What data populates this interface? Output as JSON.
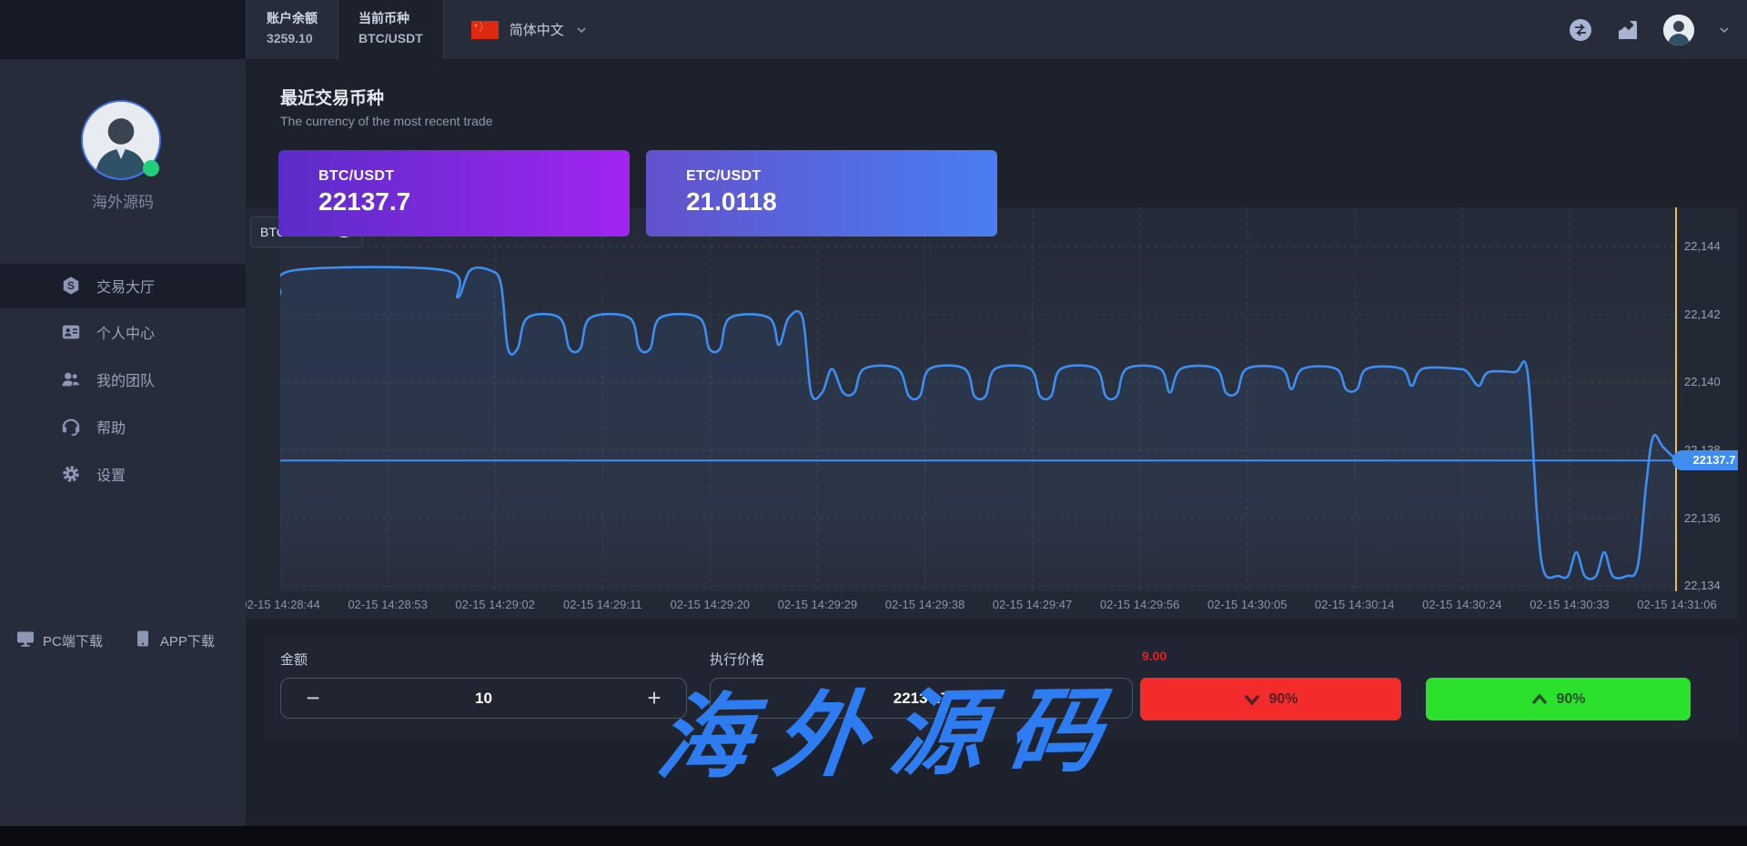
{
  "topbar": {
    "balance_label": "账户余额",
    "balance_value": "3259.10",
    "pair_label": "当前币种",
    "pair_value": "BTC/USDT",
    "language": "简体中文",
    "icons": [
      "transfer-icon",
      "market-chart-icon",
      "user-avatar",
      "chevron-down-icon"
    ]
  },
  "sidebar": {
    "username": "海外源码",
    "menu": [
      {
        "label": "交易大厅",
        "icon": "trade-hall-icon",
        "active": true
      },
      {
        "label": "个人中心",
        "icon": "profile-card-icon",
        "active": false
      },
      {
        "label": "我的团队",
        "icon": "team-icon",
        "active": false
      },
      {
        "label": "帮助",
        "icon": "support-icon",
        "active": false
      },
      {
        "label": "设置",
        "icon": "gear-icon",
        "active": false
      }
    ],
    "downloads": [
      {
        "label": "PC端下载",
        "icon": "monitor-icon"
      },
      {
        "label": "APP下载",
        "icon": "phone-icon"
      }
    ]
  },
  "recent": {
    "title": "最近交易币种",
    "subtitle": "The currency of the most recent trade",
    "cards": [
      {
        "pair": "BTC/USDT",
        "price": "22137.7"
      },
      {
        "pair": "ETC/USDT",
        "price": "21.0118"
      }
    ]
  },
  "chart_data": {
    "type": "line",
    "legend": "BTC/USDT",
    "legend_position": "top-left",
    "grid": "dashed",
    "x_ticks": [
      "02-15 14:28:44",
      "02-15 14:28:53",
      "02-15 14:29:02",
      "02-15 14:29:11",
      "02-15 14:29:20",
      "02-15 14:29:29",
      "02-15 14:29:38",
      "02-15 14:29:47",
      "02-15 14:29:56",
      "02-15 14:30:05",
      "02-15 14:30:14",
      "02-15 14:30:24",
      "02-15 14:30:33",
      "02-15 14:31:06"
    ],
    "y_ticks": [
      {
        "value": 22144,
        "label": "22,144"
      },
      {
        "value": 22142,
        "label": "22,142"
      },
      {
        "value": 22140,
        "label": "22,140"
      },
      {
        "value": 22138,
        "label": "22,138"
      },
      {
        "value": 22136,
        "label": "22,136"
      },
      {
        "value": 22134,
        "label": "22,134"
      }
    ],
    "ylim": [
      22133.85,
      22145.15
    ],
    "current_price": 22137.7,
    "current_price_label": "22137.7",
    "line_color": "#3d8ef0",
    "marker_line_color": "#e7c04a",
    "series": [
      {
        "name": "BTC/USDT",
        "points": [
          [
            0.0,
            22142.6
          ],
          [
            0.01,
            22143.3
          ],
          [
            0.118,
            22143.3
          ],
          [
            0.127,
            22142.5
          ],
          [
            0.136,
            22143.3
          ],
          [
            0.15,
            22143.3
          ],
          [
            0.158,
            22142.9
          ],
          [
            0.163,
            22141.0
          ],
          [
            0.17,
            22141.0
          ],
          [
            0.177,
            22141.9
          ],
          [
            0.2,
            22141.9
          ],
          [
            0.207,
            22141.0
          ],
          [
            0.215,
            22141.0
          ],
          [
            0.222,
            22141.9
          ],
          [
            0.25,
            22141.9
          ],
          [
            0.257,
            22141.0
          ],
          [
            0.265,
            22141.0
          ],
          [
            0.272,
            22141.9
          ],
          [
            0.3,
            22141.9
          ],
          [
            0.307,
            22141.0
          ],
          [
            0.315,
            22141.0
          ],
          [
            0.322,
            22141.9
          ],
          [
            0.35,
            22141.9
          ],
          [
            0.357,
            22141.1
          ],
          [
            0.364,
            22141.9
          ],
          [
            0.374,
            22141.9
          ],
          [
            0.38,
            22139.7
          ],
          [
            0.388,
            22139.7
          ],
          [
            0.395,
            22140.4
          ],
          [
            0.403,
            22139.7
          ],
          [
            0.411,
            22139.7
          ],
          [
            0.418,
            22140.4
          ],
          [
            0.442,
            22140.4
          ],
          [
            0.45,
            22139.6
          ],
          [
            0.458,
            22139.6
          ],
          [
            0.465,
            22140.4
          ],
          [
            0.49,
            22140.4
          ],
          [
            0.497,
            22139.6
          ],
          [
            0.505,
            22139.6
          ],
          [
            0.512,
            22140.4
          ],
          [
            0.537,
            22140.4
          ],
          [
            0.544,
            22139.6
          ],
          [
            0.552,
            22139.6
          ],
          [
            0.559,
            22140.4
          ],
          [
            0.584,
            22140.4
          ],
          [
            0.591,
            22139.6
          ],
          [
            0.599,
            22139.6
          ],
          [
            0.606,
            22140.4
          ],
          [
            0.63,
            22140.4
          ],
          [
            0.637,
            22139.7
          ],
          [
            0.645,
            22140.4
          ],
          [
            0.67,
            22140.4
          ],
          [
            0.677,
            22139.7
          ],
          [
            0.685,
            22139.7
          ],
          [
            0.692,
            22140.4
          ],
          [
            0.717,
            22140.4
          ],
          [
            0.724,
            22139.8
          ],
          [
            0.732,
            22140.4
          ],
          [
            0.756,
            22140.4
          ],
          [
            0.763,
            22139.8
          ],
          [
            0.771,
            22139.8
          ],
          [
            0.778,
            22140.4
          ],
          [
            0.803,
            22140.4
          ],
          [
            0.81,
            22139.9
          ],
          [
            0.818,
            22140.4
          ],
          [
            0.843,
            22140.4
          ],
          [
            0.85,
            22140.3
          ],
          [
            0.858,
            22139.9
          ],
          [
            0.865,
            22140.3
          ],
          [
            0.884,
            22140.3
          ],
          [
            0.893,
            22140.3
          ],
          [
            0.9,
            22136.0
          ],
          [
            0.905,
            22134.4
          ],
          [
            0.915,
            22134.3
          ],
          [
            0.922,
            22134.3
          ],
          [
            0.928,
            22135.0
          ],
          [
            0.934,
            22134.3
          ],
          [
            0.942,
            22134.3
          ],
          [
            0.948,
            22135.0
          ],
          [
            0.954,
            22134.3
          ],
          [
            0.964,
            22134.3
          ],
          [
            0.972,
            22134.6
          ],
          [
            0.978,
            22137.0
          ],
          [
            0.983,
            22138.4
          ],
          [
            0.99,
            22138.1
          ],
          [
            1.0,
            22137.7
          ]
        ]
      }
    ]
  },
  "controls": {
    "amount_label": "金额",
    "amount_value": "10",
    "minus": "−",
    "plus": "+",
    "price_label": "执行价格",
    "price_value": "22137.7",
    "countdown": "9.00",
    "sell_label": "90%",
    "buy_label": "90%"
  },
  "watermark": "海外源码",
  "colors": {
    "sell_red": "#f32b2b",
    "buy_green": "#2ce12c",
    "accent_blue": "#3d8ef0",
    "card_purple": "#a224f2",
    "card_blue": "#4a7ef2",
    "online_green": "#21d07a"
  }
}
